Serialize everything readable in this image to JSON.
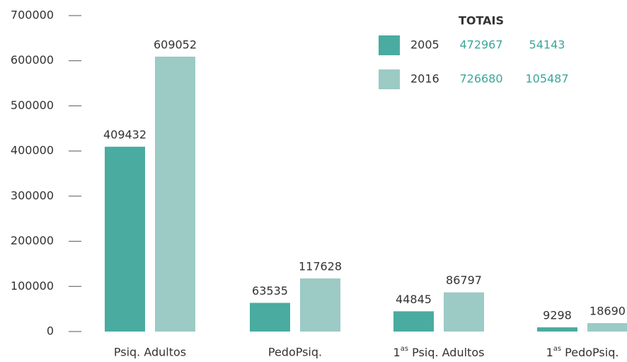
{
  "chart_data": {
    "type": "bar",
    "categories": [
      "Psiq. Adultos",
      "PedoPsiq.",
      "1as Psiq. Adultos",
      "1as PedoPsiq."
    ],
    "series": [
      {
        "name": "2005",
        "color": "#4aaba0",
        "values": [
          409432,
          63535,
          44845,
          9298
        ],
        "totals": [
          472967,
          54143
        ]
      },
      {
        "name": "2016",
        "color": "#9ccac5",
        "values": [
          609052,
          117628,
          86797,
          18690
        ],
        "totals": [
          726680,
          105487
        ]
      }
    ],
    "totals_title": "TOTAIS",
    "totals_color": "#3aa79a",
    "ylim": [
      0,
      700000
    ],
    "yticks": [
      0,
      100000,
      200000,
      300000,
      400000,
      500000,
      600000,
      700000
    ],
    "grid": false
  }
}
